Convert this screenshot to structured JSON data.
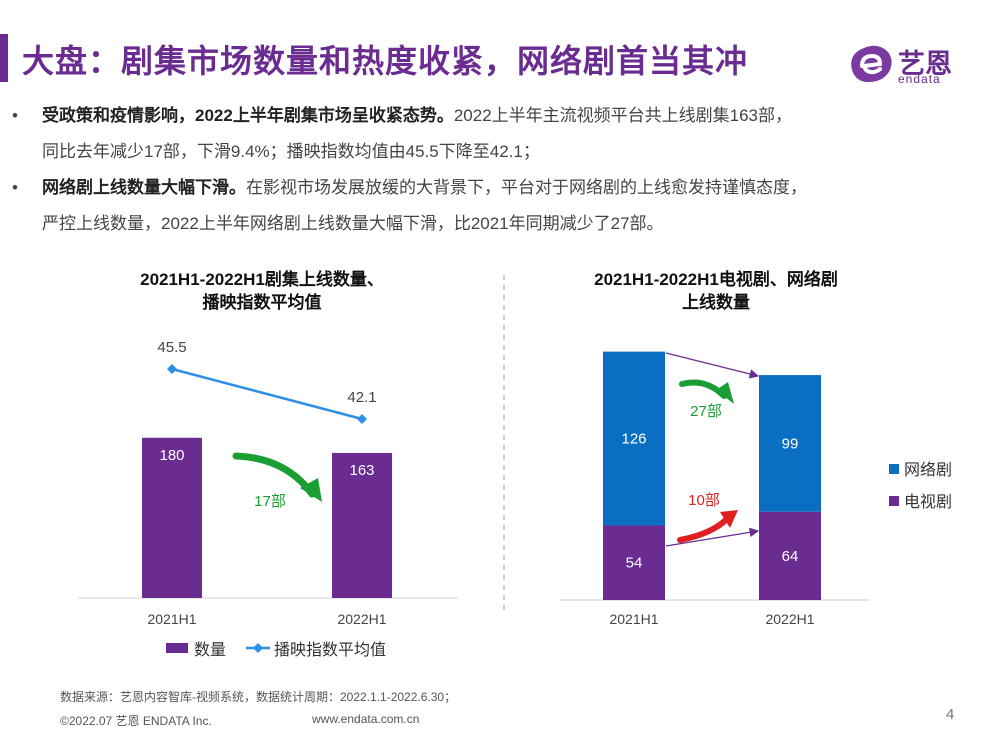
{
  "header": {
    "title": "大盘：剧集市场数量和热度收紧，网络剧首当其冲",
    "logo_name": "艺恩",
    "logo_sub": "endata"
  },
  "bullets": [
    {
      "bold": "受政策和疫情影响，2022上半年剧集市场呈收紧态势。",
      "line1": "2022上半年主流视频平台共上线剧集163部，",
      "line2": "同比去年减少17部，下滑9.4%；播映指数均值由45.5下降至42.1；"
    },
    {
      "bold": "网络剧上线数量大幅下滑。",
      "line1": "在影视市场发展放缓的大背景下，平台对于网络剧的上线愈发持谨慎态度，",
      "line2": "严控上线数量，2022上半年网络剧上线数量大幅下滑，比2021年同期减少了27部。"
    }
  ],
  "chart_data": [
    {
      "type": "bar+line",
      "title_line1": "2021H1-2022H1剧集上线数量、",
      "title_line2": "播映指数平均值",
      "categories": [
        "2021H1",
        "2022H1"
      ],
      "series": [
        {
          "name": "数量",
          "type": "bar",
          "values": [
            180,
            163
          ],
          "labels": [
            "180",
            "163"
          ],
          "color": "#6b2c91"
        },
        {
          "name": "播映指数平均值",
          "type": "line",
          "values": [
            45.5,
            42.1
          ],
          "labels": [
            "45.5",
            "42.1"
          ],
          "color": "#2f8ee6"
        }
      ],
      "annotation": "17部",
      "annotation_color": "#1a9e33"
    },
    {
      "type": "stacked-bar",
      "title_line1": "2021H1-2022H1电视剧、网络剧",
      "title_line2": "上线数量",
      "categories": [
        "2021H1",
        "2022H1"
      ],
      "series": [
        {
          "name": "电视剧",
          "values": [
            54,
            64
          ],
          "labels": [
            "54",
            "64"
          ],
          "color": "#6b2c91"
        },
        {
          "name": "网络剧",
          "values": [
            126,
            99
          ],
          "labels": [
            "126",
            "99"
          ],
          "color": "#0a6fc2"
        }
      ],
      "legend": [
        "网络剧",
        "电视剧"
      ],
      "annotations": [
        {
          "text": "27部",
          "color": "#1a9e33"
        },
        {
          "text": "10部",
          "color": "#e02020"
        }
      ]
    }
  ],
  "footer": {
    "source": "数据来源：艺恩内容智库-视频系统，数据统计周期：2022.1.1-2022.6.30；",
    "copyright": "©2022.07 艺恩 ENDATA Inc.",
    "url": "www.endata.com.cn",
    "page": "4"
  },
  "colors": {
    "brand": "#6b2c91",
    "blue": "#0a6fc2",
    "line_blue": "#2f8ee6",
    "green": "#1a9e33",
    "red": "#e02020"
  }
}
